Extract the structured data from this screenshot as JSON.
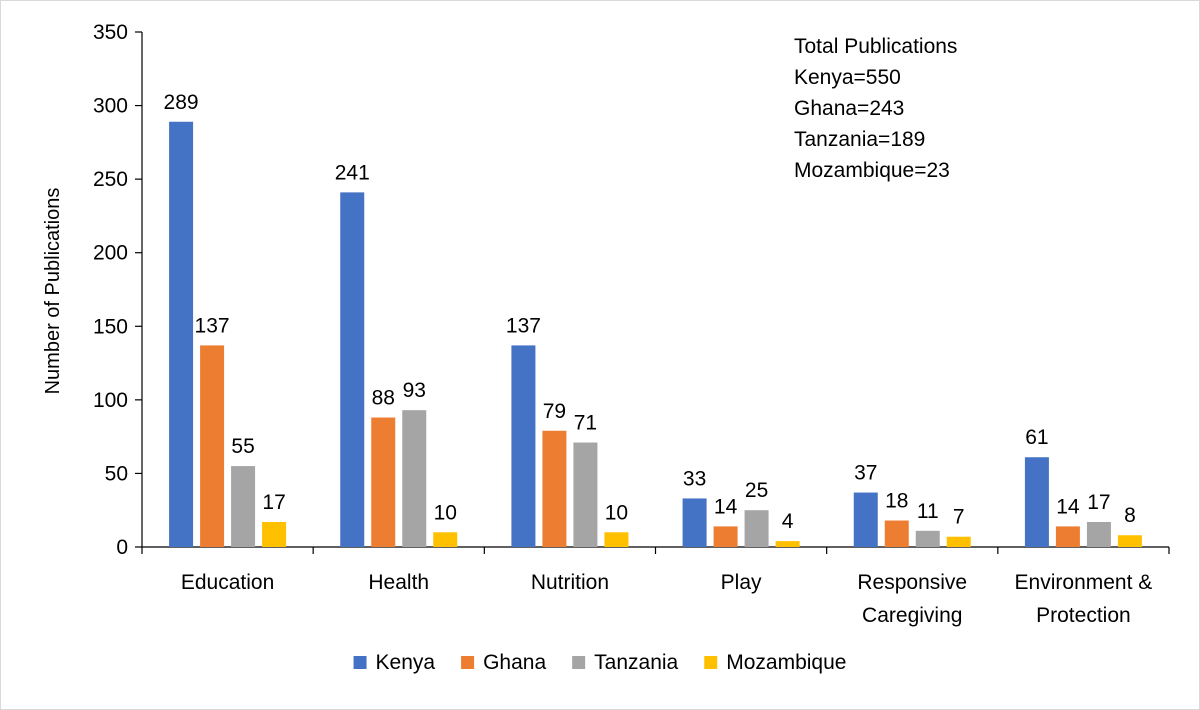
{
  "chart_data": {
    "type": "bar",
    "title": "",
    "xlabel": "",
    "ylabel": "Number of Publications",
    "ylim": [
      0,
      350
    ],
    "yticks": [
      0,
      50,
      100,
      150,
      200,
      250,
      300,
      350
    ],
    "grid": false,
    "legend_position": "bottom",
    "categories": [
      [
        "Education"
      ],
      [
        "Health"
      ],
      [
        "Nutrition"
      ],
      [
        "Play"
      ],
      [
        "Responsive",
        "Caregiving"
      ],
      [
        "Environment &",
        "Protection"
      ]
    ],
    "series": [
      {
        "name": "Kenya",
        "color": "#4472C4",
        "values": [
          289,
          241,
          137,
          33,
          37,
          61
        ]
      },
      {
        "name": "Ghana",
        "color": "#ED7D31",
        "values": [
          137,
          88,
          79,
          14,
          18,
          14
        ]
      },
      {
        "name": "Tanzania",
        "color": "#A5A5A5",
        "values": [
          55,
          93,
          71,
          25,
          11,
          17
        ]
      },
      {
        "name": "Mozambique",
        "color": "#FFC000",
        "values": [
          17,
          10,
          10,
          4,
          7,
          8
        ]
      }
    ],
    "annotation": [
      "Total Publications",
      "Kenya=550",
      "Ghana=243",
      "Tanzania=189",
      "Mozambique=23"
    ]
  }
}
